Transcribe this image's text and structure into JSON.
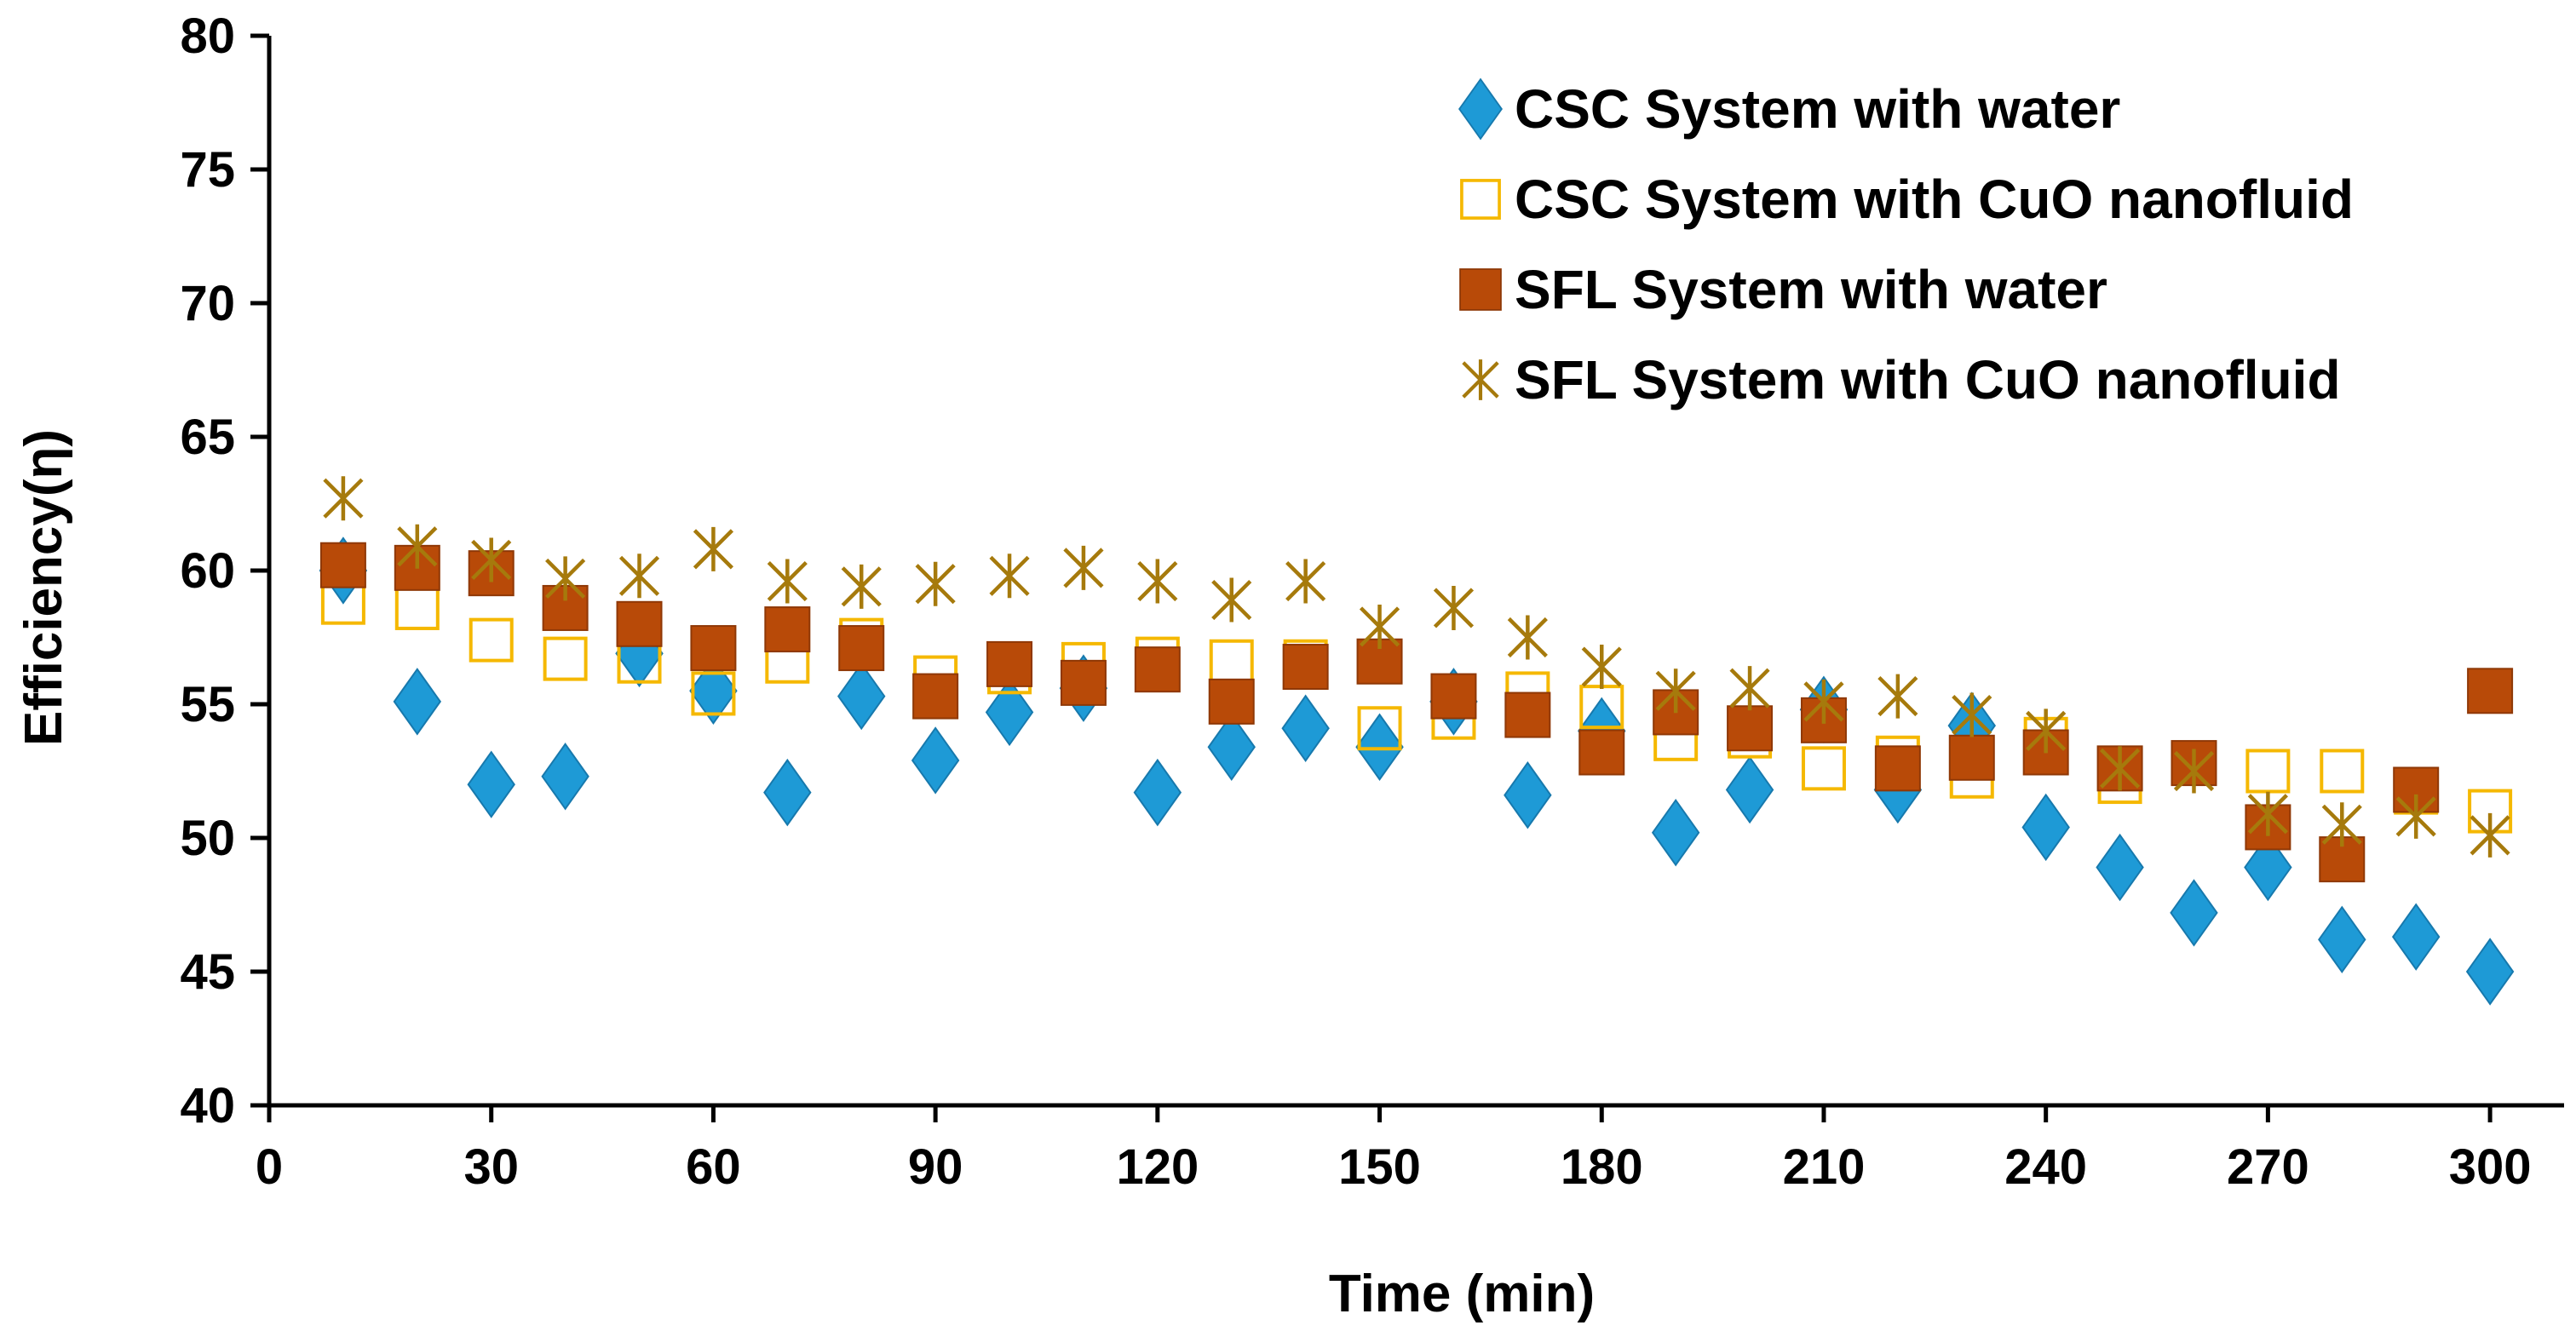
{
  "chart_data": {
    "type": "scatter",
    "title": "",
    "xlabel": "Time (min)",
    "ylabel": "Efficiency(η)",
    "xlim": [
      0,
      310
    ],
    "ylim": [
      40,
      80
    ],
    "xticks": [
      0,
      30,
      60,
      90,
      120,
      150,
      180,
      210,
      240,
      270,
      300
    ],
    "yticks": [
      40,
      45,
      50,
      55,
      60,
      65,
      70,
      75,
      80
    ],
    "grid": false,
    "legend_position": "top-right",
    "series": [
      {
        "name": "CSC System with water",
        "marker": "diamond",
        "color": "#1e9ad6",
        "x": [
          10,
          20,
          30,
          40,
          50,
          60,
          70,
          80,
          90,
          100,
          110,
          120,
          130,
          140,
          150,
          160,
          170,
          180,
          190,
          200,
          210,
          220,
          230,
          240,
          250,
          260,
          270,
          280,
          290,
          300
        ],
        "y": [
          60.0,
          55.1,
          52.0,
          52.3,
          56.9,
          55.5,
          51.7,
          55.3,
          52.9,
          54.7,
          55.6,
          51.7,
          53.4,
          54.1,
          53.4,
          55.1,
          51.6,
          54.0,
          50.2,
          51.8,
          54.8,
          51.8,
          54.2,
          50.4,
          48.9,
          47.2,
          48.9,
          46.2,
          46.3,
          45.0
        ]
      },
      {
        "name": "CSC System with CuO nanofluid",
        "marker": "hollow-square",
        "color": "#f5b800",
        "x": [
          10,
          20,
          30,
          40,
          50,
          60,
          70,
          80,
          90,
          100,
          110,
          120,
          130,
          140,
          150,
          160,
          170,
          180,
          190,
          200,
          210,
          220,
          230,
          240,
          250,
          260,
          270,
          280,
          290,
          300
        ],
        "y": [
          58.8,
          58.6,
          57.4,
          56.7,
          56.6,
          55.4,
          56.6,
          57.4,
          56.0,
          56.2,
          56.5,
          56.7,
          56.6,
          56.6,
          54.1,
          54.5,
          55.4,
          54.9,
          53.7,
          53.8,
          52.6,
          53.0,
          52.3,
          53.7,
          52.1,
          52.8,
          52.5,
          52.5,
          51.7,
          51.0
        ]
      },
      {
        "name": "SFL System  with water",
        "marker": "square",
        "color": "#b84a08",
        "x": [
          10,
          20,
          30,
          40,
          50,
          60,
          70,
          80,
          90,
          100,
          110,
          120,
          130,
          140,
          150,
          160,
          170,
          180,
          190,
          200,
          210,
          220,
          230,
          240,
          250,
          260,
          270,
          280,
          290,
          300
        ],
        "y": [
          60.2,
          60.1,
          59.9,
          58.6,
          58.0,
          57.1,
          57.8,
          57.1,
          55.3,
          56.5,
          55.8,
          56.3,
          55.1,
          56.4,
          56.6,
          55.3,
          54.6,
          53.2,
          54.7,
          54.1,
          54.4,
          52.6,
          53.0,
          53.2,
          52.6,
          52.8,
          50.4,
          49.2,
          51.8,
          55.5
        ]
      },
      {
        "name": "SFL System with CuO nanofluid",
        "marker": "asterisk",
        "color": "#a67a0c",
        "x": [
          10,
          20,
          30,
          40,
          50,
          60,
          70,
          80,
          90,
          100,
          110,
          120,
          130,
          140,
          150,
          160,
          170,
          180,
          190,
          200,
          210,
          220,
          230,
          240,
          250,
          260,
          270,
          280,
          290,
          300
        ],
        "y": [
          62.7,
          60.9,
          60.4,
          59.7,
          59.8,
          60.8,
          59.6,
          59.4,
          59.5,
          59.8,
          60.1,
          59.6,
          58.9,
          59.6,
          57.9,
          58.6,
          57.5,
          56.4,
          55.5,
          55.6,
          55.1,
          55.3,
          54.6,
          54.0,
          52.6,
          52.5,
          50.9,
          50.5,
          50.8,
          50.1
        ]
      }
    ]
  }
}
